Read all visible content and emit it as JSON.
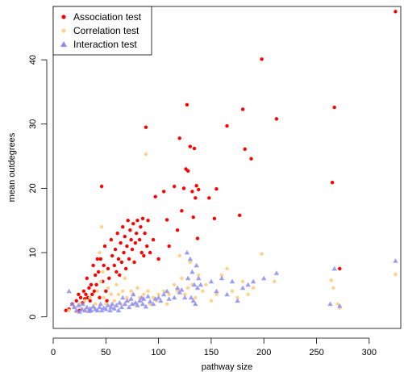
{
  "chart_data": {
    "type": "scatter",
    "title": "",
    "xlabel": "pathway size",
    "ylabel": "mean outdegrees",
    "xlim": [
      0,
      330
    ],
    "ylim": [
      -1.8,
      48.3
    ],
    "xticks": [
      0,
      50,
      100,
      150,
      200,
      250,
      300
    ],
    "yticks": [
      0,
      10,
      20,
      30,
      40
    ],
    "legend_position": "top-left",
    "series": [
      {
        "name": "Association test",
        "color": "#ff0000",
        "marker": "circle",
        "points": [
          [
            12,
            1.0
          ],
          [
            15,
            1.2
          ],
          [
            18,
            2.0
          ],
          [
            20,
            1.5
          ],
          [
            22,
            2.5
          ],
          [
            24,
            3.5
          ],
          [
            25,
            1.0
          ],
          [
            26,
            3.0
          ],
          [
            28,
            2.2
          ],
          [
            29,
            4.0
          ],
          [
            30,
            2.8
          ],
          [
            31,
            3.5
          ],
          [
            32,
            6.0
          ],
          [
            33,
            3.0
          ],
          [
            34,
            4.5
          ],
          [
            35,
            2.5
          ],
          [
            36,
            5.0
          ],
          [
            37,
            3.5
          ],
          [
            38,
            8.0
          ],
          [
            39,
            4.0
          ],
          [
            40,
            6.5
          ],
          [
            41,
            5.0
          ],
          [
            42,
            9.0
          ],
          [
            43,
            7.0
          ],
          [
            44,
            3.0
          ],
          [
            45,
            9.0
          ],
          [
            46,
            20.3
          ],
          [
            47,
            5.5
          ],
          [
            48,
            8.0
          ],
          [
            49,
            11.0
          ],
          [
            50,
            4.0
          ],
          [
            51,
            2.5
          ],
          [
            52,
            7.5
          ],
          [
            53,
            6.0
          ],
          [
            55,
            12.0
          ],
          [
            56,
            9.5
          ],
          [
            58,
            8.0
          ],
          [
            59,
            10.5
          ],
          [
            60,
            7.0
          ],
          [
            61,
            13.0
          ],
          [
            62,
            9.0
          ],
          [
            63,
            6.5
          ],
          [
            64,
            11.5
          ],
          [
            65,
            8.5
          ],
          [
            66,
            14.0
          ],
          [
            67,
            10.0
          ],
          [
            68,
            12.5
          ],
          [
            69,
            7.5
          ],
          [
            70,
            11.0
          ],
          [
            71,
            15.0
          ],
          [
            72,
            9.0
          ],
          [
            73,
            13.5
          ],
          [
            74,
            12.0
          ],
          [
            75,
            10.5
          ],
          [
            76,
            14.5
          ],
          [
            77,
            8.5
          ],
          [
            78,
            11.5
          ],
          [
            79,
            13.0
          ],
          [
            80,
            15.0
          ],
          [
            82,
            12.0
          ],
          [
            83,
            14.0
          ],
          [
            84,
            10.0
          ],
          [
            85,
            15.3
          ],
          [
            86,
            9.5
          ],
          [
            87,
            13.0
          ],
          [
            88,
            29.5
          ],
          [
            89,
            11.0
          ],
          [
            90,
            15.0
          ],
          [
            92,
            10.0
          ],
          [
            95,
            12.0
          ],
          [
            97,
            18.7
          ],
          [
            100,
            9.0
          ],
          [
            105,
            19.5
          ],
          [
            108,
            15.1
          ],
          [
            110,
            11.0
          ],
          [
            115,
            20.3
          ],
          [
            118,
            13.5
          ],
          [
            120,
            27.8
          ],
          [
            122,
            16.5
          ],
          [
            124,
            20.0
          ],
          [
            126,
            23.0
          ],
          [
            127,
            33.0
          ],
          [
            128,
            22.7
          ],
          [
            130,
            26.5
          ],
          [
            132,
            19.5
          ],
          [
            133,
            15.5
          ],
          [
            134,
            26.2
          ],
          [
            135,
            18.5
          ],
          [
            136,
            20.4
          ],
          [
            137,
            12.2
          ],
          [
            138,
            19.8
          ],
          [
            148,
            18.5
          ],
          [
            153,
            15.3
          ],
          [
            155,
            19.9
          ],
          [
            165,
            29.7
          ],
          [
            177,
            15.8
          ],
          [
            180,
            32.3
          ],
          [
            182,
            26.1
          ],
          [
            188,
            24.6
          ],
          [
            198,
            40.1
          ],
          [
            212,
            30.8
          ],
          [
            265,
            20.9
          ],
          [
            267,
            32.6
          ],
          [
            272,
            7.5
          ],
          [
            325,
            47.5
          ]
        ]
      },
      {
        "name": "Correlation test",
        "color": "#ffd28c",
        "marker": "circle",
        "points": [
          [
            15,
            1.0
          ],
          [
            20,
            1.5
          ],
          [
            22,
            0.8
          ],
          [
            25,
            2.0
          ],
          [
            28,
            1.2
          ],
          [
            30,
            2.5
          ],
          [
            32,
            1.0
          ],
          [
            35,
            3.0
          ],
          [
            38,
            1.5
          ],
          [
            40,
            2.0
          ],
          [
            42,
            4.0
          ],
          [
            44,
            10.0
          ],
          [
            45,
            5.5
          ],
          [
            46,
            14.0
          ],
          [
            47,
            7.0
          ],
          [
            48,
            3.0
          ],
          [
            50,
            2.0
          ],
          [
            52,
            4.5
          ],
          [
            55,
            3.5
          ],
          [
            58,
            2.5
          ],
          [
            60,
            5.0
          ],
          [
            62,
            3.5
          ],
          [
            64,
            2.0
          ],
          [
            66,
            4.0
          ],
          [
            68,
            6.0
          ],
          [
            70,
            3.0
          ],
          [
            72,
            2.5
          ],
          [
            74,
            4.0
          ],
          [
            76,
            3.5
          ],
          [
            78,
            2.0
          ],
          [
            80,
            4.5
          ],
          [
            82,
            3.0
          ],
          [
            84,
            2.5
          ],
          [
            86,
            3.5
          ],
          [
            88,
            25.3
          ],
          [
            90,
            4.0
          ],
          [
            92,
            2.0
          ],
          [
            95,
            3.0
          ],
          [
            98,
            2.5
          ],
          [
            100,
            3.5
          ],
          [
            105,
            4.0
          ],
          [
            108,
            2.0
          ],
          [
            110,
            3.5
          ],
          [
            115,
            5.0
          ],
          [
            118,
            4.0
          ],
          [
            120,
            9.5
          ],
          [
            122,
            6.0
          ],
          [
            125,
            3.5
          ],
          [
            128,
            4.5
          ],
          [
            130,
            8.5
          ],
          [
            132,
            5.0
          ],
          [
            135,
            3.0
          ],
          [
            138,
            6.5
          ],
          [
            142,
            4.0
          ],
          [
            145,
            5.0
          ],
          [
            150,
            2.5
          ],
          [
            155,
            3.5
          ],
          [
            160,
            6.5
          ],
          [
            165,
            7.5
          ],
          [
            170,
            4.0
          ],
          [
            175,
            3.0
          ],
          [
            180,
            5.5
          ],
          [
            185,
            3.5
          ],
          [
            190,
            4.5
          ],
          [
            198,
            9.8
          ],
          [
            210,
            5.5
          ],
          [
            264,
            5.7
          ],
          [
            266,
            4.5
          ],
          [
            270,
            2.0
          ],
          [
            272,
            1.4
          ],
          [
            325,
            6.6
          ]
        ]
      },
      {
        "name": "Interaction test",
        "color": "#8c8cf5",
        "marker": "triangle",
        "points": [
          [
            15,
            4.0
          ],
          [
            18,
            2.0
          ],
          [
            20,
            1.5
          ],
          [
            22,
            1.0
          ],
          [
            24,
            1.8
          ],
          [
            25,
            0.8
          ],
          [
            27,
            1.2
          ],
          [
            28,
            2.0
          ],
          [
            30,
            1.0
          ],
          [
            32,
            1.5
          ],
          [
            34,
            0.9
          ],
          [
            35,
            1.3
          ],
          [
            36,
            1.0
          ],
          [
            38,
            1.6
          ],
          [
            40,
            1.2
          ],
          [
            42,
            1.0
          ],
          [
            44,
            1.5
          ],
          [
            45,
            2.0
          ],
          [
            46,
            1.0
          ],
          [
            48,
            1.4
          ],
          [
            50,
            1.2
          ],
          [
            52,
            1.8
          ],
          [
            54,
            1.0
          ],
          [
            55,
            1.5
          ],
          [
            56,
            2.0
          ],
          [
            58,
            1.3
          ],
          [
            60,
            1.8
          ],
          [
            62,
            1.0
          ],
          [
            63,
            2.2
          ],
          [
            65,
            1.5
          ],
          [
            66,
            3.0
          ],
          [
            68,
            2.0
          ],
          [
            70,
            2.5
          ],
          [
            72,
            1.5
          ],
          [
            74,
            2.8
          ],
          [
            75,
            2.0
          ],
          [
            76,
            3.5
          ],
          [
            78,
            2.2
          ],
          [
            80,
            1.8
          ],
          [
            82,
            2.5
          ],
          [
            84,
            3.0
          ],
          [
            85,
            2.0
          ],
          [
            86,
            2.8
          ],
          [
            88,
            1.6
          ],
          [
            90,
            3.2
          ],
          [
            92,
            2.4
          ],
          [
            95,
            2.0
          ],
          [
            97,
            2.8
          ],
          [
            100,
            3.0
          ],
          [
            102,
            2.5
          ],
          [
            105,
            3.5
          ],
          [
            108,
            4.0
          ],
          [
            110,
            2.8
          ],
          [
            115,
            3.0
          ],
          [
            118,
            4.5
          ],
          [
            120,
            3.8
          ],
          [
            122,
            4.2
          ],
          [
            125,
            3.0
          ],
          [
            127,
            10.0
          ],
          [
            128,
            6.0
          ],
          [
            130,
            9.0
          ],
          [
            131,
            3.0
          ],
          [
            132,
            7.0
          ],
          [
            133,
            2.5
          ],
          [
            134,
            5.0
          ],
          [
            135,
            2.0
          ],
          [
            136,
            8.0
          ],
          [
            137,
            4.5
          ],
          [
            138,
            6.0
          ],
          [
            140,
            5.0
          ],
          [
            150,
            5.5
          ],
          [
            155,
            4.0
          ],
          [
            160,
            6.0
          ],
          [
            165,
            3.5
          ],
          [
            170,
            5.5
          ],
          [
            175,
            2.5
          ],
          [
            180,
            4.5
          ],
          [
            185,
            5.0
          ],
          [
            190,
            5.5
          ],
          [
            200,
            6.0
          ],
          [
            212,
            6.8
          ],
          [
            263,
            2.0
          ],
          [
            267,
            7.5
          ],
          [
            272,
            1.7
          ],
          [
            325,
            8.7
          ]
        ]
      }
    ]
  }
}
